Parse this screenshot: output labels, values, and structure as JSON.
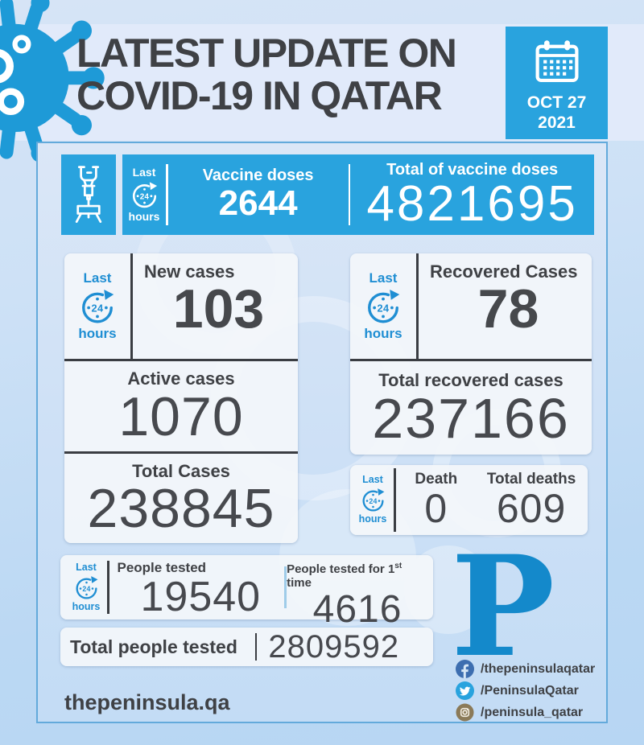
{
  "last24": {
    "last": "Last",
    "hours": "hours"
  },
  "header": {
    "title_line1": "LATEST UPDATE ON",
    "title_line2": "COVID-19 IN QATAR",
    "date_month_day": "OCT 27",
    "date_year": "2021"
  },
  "vaccine": {
    "doses_label": "Vaccine doses",
    "doses_value": "2644",
    "total_label": "Total of vaccine doses",
    "total_value": "4821695"
  },
  "cases": {
    "new_label": "New cases",
    "new_value": "103",
    "active_label": "Active cases",
    "active_value": "1070",
    "total_label": "Total Cases",
    "total_value": "238845"
  },
  "recovered": {
    "label": "Recovered Cases",
    "value": "78",
    "total_label": "Total recovered cases",
    "total_value": "237166"
  },
  "deaths": {
    "label": "Death",
    "value": "0",
    "total_label": "Total deaths",
    "total_value": "609"
  },
  "testing": {
    "people_label": "People tested",
    "people_value": "19540",
    "first_label_prefix": "People tested for 1",
    "first_label_sup": "st",
    "first_label_suffix": " time",
    "first_value": "4616",
    "total_label": "Total people tested",
    "total_value": "2809592"
  },
  "footer": {
    "logo_letter": "P",
    "website": "thepeninsula.qa",
    "facebook_handle": "/thepeninsulaqatar",
    "twitter_handle": "/PeninsulaQatar",
    "instagram_handle": "/peninsula_qatar"
  },
  "colors": {
    "accent_blue": "#29a3de",
    "clock_blue": "#1f8ed3",
    "dark_text": "#3f4145",
    "logo_blue": "#1489cb",
    "facebook_blue": "#3d6eb0",
    "twitter_blue": "#29a3de",
    "instagram_gold": "#8b7a58"
  }
}
